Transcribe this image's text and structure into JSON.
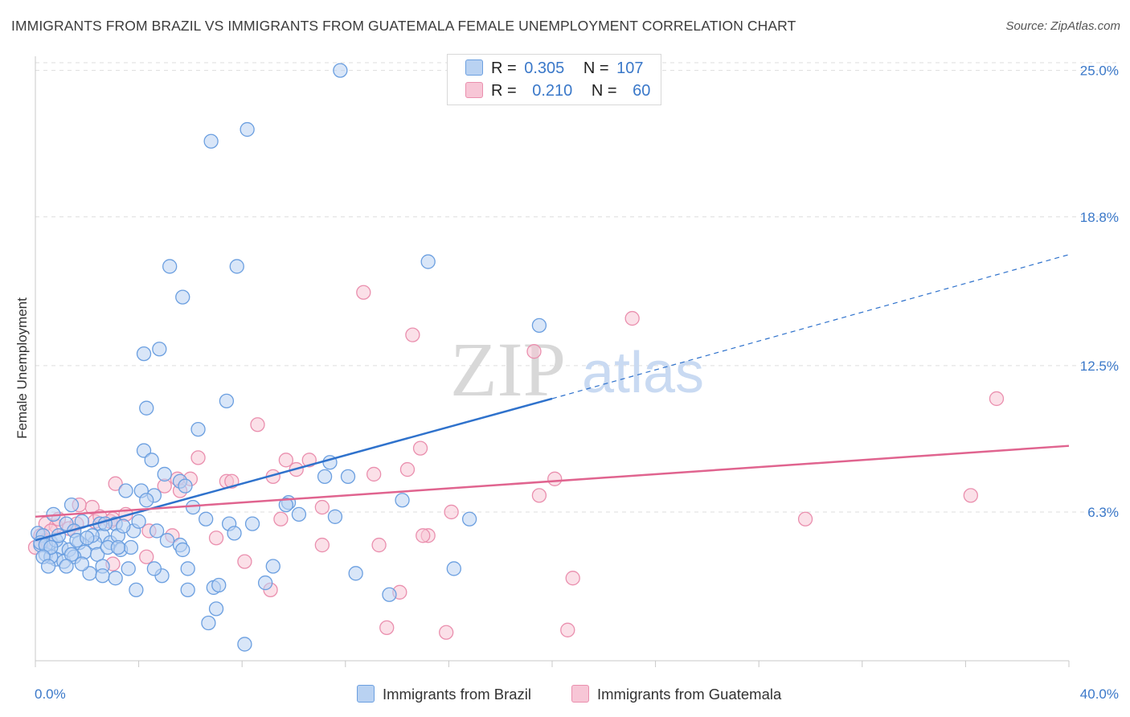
{
  "title": "IMMIGRANTS FROM BRAZIL VS IMMIGRANTS FROM GUATEMALA FEMALE UNEMPLOYMENT CORRELATION CHART",
  "source": "Source: ZipAtlas.com",
  "watermark": {
    "zip": "ZIP",
    "atlas": "atlas"
  },
  "legend": {
    "rows": [
      {
        "r_label": "R =",
        "r_value": "0.305",
        "n_label": "N =",
        "n_value": "107"
      },
      {
        "r_label": "R =",
        "r_value": "0.210",
        "n_label": "N =",
        "n_value": "60"
      }
    ]
  },
  "colors": {
    "brazil_fill": "#b9d2f2",
    "brazil_stroke": "#6b9fe0",
    "brazil_line": "#2f72cc",
    "guatemala_fill": "#f7c6d6",
    "guatemala_stroke": "#ea8fae",
    "guatemala_line": "#e0648f",
    "tick_label": "#3a78c9",
    "grid": "#dddddd"
  },
  "chart_data": {
    "type": "scatter",
    "title": "IMMIGRANTS FROM BRAZIL VS IMMIGRANTS FROM GUATEMALA FEMALE UNEMPLOYMENT CORRELATION CHART",
    "xlabel": "",
    "ylabel": "Female Unemployment",
    "xlim": [
      0,
      40
    ],
    "ylim": [
      0,
      25.6
    ],
    "x_tick_labels": [
      "0.0%",
      "40.0%"
    ],
    "y_ticks": [
      6.3,
      12.5,
      18.8,
      25.0
    ],
    "y_tick_labels": [
      "6.3%",
      "12.5%",
      "18.8%",
      "25.0%"
    ],
    "grid": true,
    "series": [
      {
        "name": "Immigrants from Brazil",
        "r": 0.305,
        "n": 107,
        "trend": {
          "x_start": 0,
          "y_start": 5.1,
          "x_solid_end": 20,
          "y_solid_end": 11.1,
          "x_dash_end": 40,
          "y_dash_end": 17.2
        },
        "points": [
          [
            11.8,
            25.0
          ],
          [
            8.2,
            22.5
          ],
          [
            6.8,
            22.0
          ],
          [
            15.2,
            16.9
          ],
          [
            5.2,
            16.7
          ],
          [
            7.8,
            16.7
          ],
          [
            5.7,
            15.4
          ],
          [
            19.5,
            14.2
          ],
          [
            4.8,
            13.2
          ],
          [
            4.2,
            13.0
          ],
          [
            4.3,
            10.7
          ],
          [
            7.4,
            11.0
          ],
          [
            6.3,
            9.8
          ],
          [
            4.2,
            8.9
          ],
          [
            4.5,
            8.5
          ],
          [
            11.4,
            8.4
          ],
          [
            5.6,
            7.6
          ],
          [
            11.2,
            7.8
          ],
          [
            12.1,
            7.8
          ],
          [
            5.0,
            7.9
          ],
          [
            5.8,
            7.4
          ],
          [
            3.5,
            7.2
          ],
          [
            4.1,
            7.2
          ],
          [
            4.6,
            7.0
          ],
          [
            4.3,
            6.8
          ],
          [
            14.2,
            6.8
          ],
          [
            9.8,
            6.7
          ],
          [
            9.7,
            6.6
          ],
          [
            6.1,
            6.5
          ],
          [
            11.6,
            6.1
          ],
          [
            16.8,
            6.0
          ],
          [
            10.2,
            6.2
          ],
          [
            6.6,
            6.0
          ],
          [
            1.4,
            6.6
          ],
          [
            0.7,
            6.2
          ],
          [
            1.8,
            5.9
          ],
          [
            2.5,
            5.8
          ],
          [
            3.1,
            5.8
          ],
          [
            1.2,
            5.8
          ],
          [
            0.1,
            5.4
          ],
          [
            0.3,
            5.3
          ],
          [
            1.5,
            5.5
          ],
          [
            2.6,
            5.3
          ],
          [
            1.7,
            5.0
          ],
          [
            2.3,
            5.0
          ],
          [
            2.9,
            5.0
          ],
          [
            0.6,
            5.0
          ],
          [
            0.2,
            4.9
          ],
          [
            1.0,
            4.8
          ],
          [
            1.3,
            4.7
          ],
          [
            1.9,
            4.6
          ],
          [
            2.4,
            4.5
          ],
          [
            0.4,
            4.5
          ],
          [
            0.8,
            4.3
          ],
          [
            1.1,
            4.2
          ],
          [
            0.6,
            4.4
          ],
          [
            1.5,
            4.4
          ],
          [
            0.2,
            5.0
          ],
          [
            3.3,
            4.7
          ],
          [
            3.7,
            4.8
          ],
          [
            3.2,
            5.3
          ],
          [
            3.8,
            5.5
          ],
          [
            4.0,
            5.9
          ],
          [
            3.4,
            5.7
          ],
          [
            2.8,
            4.8
          ],
          [
            3.2,
            4.8
          ],
          [
            4.7,
            5.5
          ],
          [
            5.1,
            5.1
          ],
          [
            5.6,
            4.9
          ],
          [
            5.7,
            4.7
          ],
          [
            7.5,
            5.8
          ],
          [
            7.7,
            5.4
          ],
          [
            8.4,
            5.8
          ],
          [
            9.2,
            4.0
          ],
          [
            12.4,
            3.7
          ],
          [
            16.2,
            3.9
          ],
          [
            4.9,
            3.6
          ],
          [
            5.9,
            3.9
          ],
          [
            3.6,
            3.9
          ],
          [
            4.6,
            3.9
          ],
          [
            2.6,
            4.0
          ],
          [
            2.1,
            3.7
          ],
          [
            2.6,
            3.6
          ],
          [
            3.1,
            3.5
          ],
          [
            3.9,
            3.0
          ],
          [
            5.9,
            3.0
          ],
          [
            6.9,
            3.1
          ],
          [
            7.1,
            3.2
          ],
          [
            8.9,
            3.3
          ],
          [
            13.7,
            2.8
          ],
          [
            7.0,
            2.2
          ],
          [
            6.7,
            1.6
          ],
          [
            8.1,
            0.7
          ],
          [
            0.4,
            4.9
          ],
          [
            0.8,
            5.1
          ],
          [
            0.6,
            4.8
          ],
          [
            1.4,
            4.5
          ],
          [
            1.8,
            4.1
          ],
          [
            2.2,
            5.3
          ],
          [
            2.7,
            5.8
          ],
          [
            0.9,
            5.3
          ],
          [
            1.6,
            5.1
          ],
          [
            0.3,
            4.4
          ],
          [
            0.5,
            4.0
          ],
          [
            1.2,
            4.0
          ],
          [
            2.0,
            5.2
          ]
        ]
      },
      {
        "name": "Immigrants from Guatemala",
        "r": 0.21,
        "n": 60,
        "trend": {
          "x_start": 0,
          "y_start": 6.1,
          "x_end": 40,
          "y_end": 9.1
        },
        "points": [
          [
            12.7,
            15.6
          ],
          [
            23.1,
            14.5
          ],
          [
            14.6,
            13.8
          ],
          [
            19.3,
            13.1
          ],
          [
            37.2,
            11.1
          ],
          [
            8.6,
            10.0
          ],
          [
            14.9,
            9.0
          ],
          [
            6.3,
            8.6
          ],
          [
            9.7,
            8.5
          ],
          [
            10.6,
            8.5
          ],
          [
            10.1,
            8.1
          ],
          [
            14.4,
            8.1
          ],
          [
            13.1,
            7.9
          ],
          [
            9.2,
            7.8
          ],
          [
            5.5,
            7.7
          ],
          [
            6.0,
            7.7
          ],
          [
            7.4,
            7.6
          ],
          [
            7.6,
            7.6
          ],
          [
            3.1,
            7.5
          ],
          [
            5.0,
            7.4
          ],
          [
            5.6,
            7.2
          ],
          [
            20.1,
            7.7
          ],
          [
            19.5,
            7.0
          ],
          [
            36.2,
            7.0
          ],
          [
            11.1,
            6.5
          ],
          [
            16.1,
            6.3
          ],
          [
            2.2,
            6.5
          ],
          [
            1.7,
            6.6
          ],
          [
            3.5,
            6.2
          ],
          [
            9.5,
            6.0
          ],
          [
            29.8,
            6.0
          ],
          [
            0.4,
            5.8
          ],
          [
            1.6,
            5.8
          ],
          [
            2.3,
            5.9
          ],
          [
            2.9,
            5.9
          ],
          [
            3.0,
            6.0
          ],
          [
            0.8,
            5.7
          ],
          [
            4.4,
            5.5
          ],
          [
            5.3,
            5.3
          ],
          [
            7.0,
            5.2
          ],
          [
            15.2,
            5.3
          ],
          [
            15.0,
            5.3
          ],
          [
            0.2,
            5.3
          ],
          [
            0.4,
            5.1
          ],
          [
            11.1,
            4.9
          ],
          [
            13.3,
            4.9
          ],
          [
            4.3,
            4.4
          ],
          [
            8.1,
            4.2
          ],
          [
            0.0,
            4.8
          ],
          [
            3.0,
            4.1
          ],
          [
            20.8,
            3.5
          ],
          [
            14.1,
            2.9
          ],
          [
            9.1,
            3.0
          ],
          [
            13.6,
            1.4
          ],
          [
            15.9,
            1.2
          ],
          [
            20.6,
            1.3
          ],
          [
            0.9,
            6.0
          ],
          [
            2.5,
            6.1
          ],
          [
            1.3,
            5.6
          ],
          [
            0.6,
            5.5
          ]
        ]
      }
    ]
  },
  "axis": {
    "x_min_label": "0.0%",
    "x_max_label": "40.0%",
    "y_title": "Female Unemployment"
  },
  "bottom_legend": {
    "brazil": "Immigrants from Brazil",
    "guatemala": "Immigrants from Guatemala"
  }
}
